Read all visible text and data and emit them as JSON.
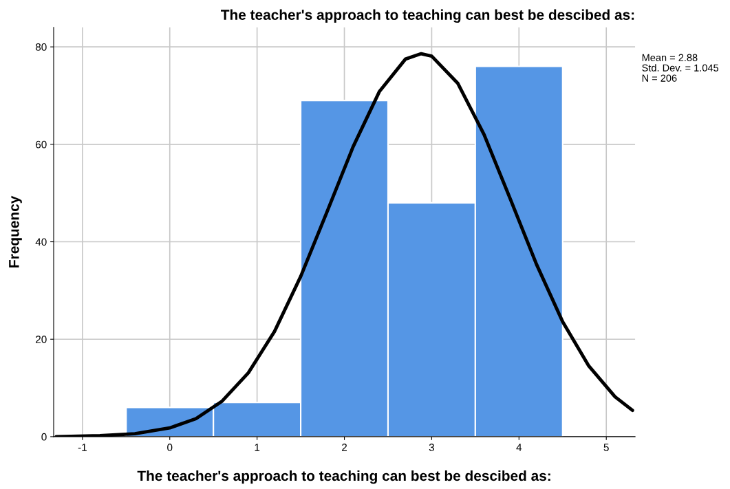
{
  "chart_data": {
    "type": "histogram",
    "title": "The teacher's approach to teaching can best be descibed as:",
    "xlabel": "The teacher's approach to teaching can best be descibed as:",
    "ylabel": "Frequency",
    "bins": [
      -0.5,
      0.5,
      1.5,
      2.5,
      3.5,
      4.5
    ],
    "values": [
      6,
      7,
      69,
      48,
      76
    ],
    "color": "#5596e5",
    "series": [
      {
        "type": "line",
        "color": "#000000",
        "x": [
          -1.3,
          -0.8,
          -0.4,
          0,
          0.3,
          0.6,
          0.9,
          1.2,
          1.5,
          1.8,
          2.1,
          2.4,
          2.7,
          2.88,
          3.0,
          3.3,
          3.6,
          3.9,
          4.2,
          4.5,
          4.8,
          5.1,
          5.3
        ],
        "values": [
          0,
          0.2,
          0.6,
          1.8,
          3.7,
          7.3,
          13.1,
          21.6,
          32.9,
          46.1,
          59.5,
          70.8,
          77.5,
          78.6,
          78.1,
          72.5,
          62.0,
          48.8,
          35.4,
          23.6,
          14.5,
          8.2,
          5.4
        ]
      }
    ],
    "xlim": [
      -1.33,
      5.33
    ],
    "ylim": [
      0,
      84
    ],
    "xticks": [
      -1,
      0,
      1,
      2,
      3,
      4,
      5
    ],
    "yticks": [
      0,
      20,
      40,
      60,
      80
    ],
    "grid": true,
    "annotations": [
      "Mean = 2.88",
      "Std. Dev. = 1.045",
      "N = 206"
    ]
  }
}
